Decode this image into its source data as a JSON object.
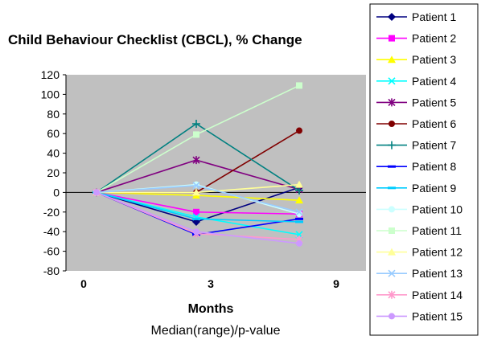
{
  "chart_data": {
    "type": "line",
    "title": "Child Behaviour Checklist (CBCL), % Change",
    "xlabel": "Months",
    "subtitle": "Median(range)/p-value",
    "categories": [
      "0",
      "3",
      "9"
    ],
    "ylim": [
      -80,
      120
    ],
    "yticks": [
      "120",
      "100",
      "80",
      "60",
      "40",
      "20",
      "0",
      "-20",
      "-40",
      "-60",
      "-80"
    ],
    "plot_background": "#c0c0c0",
    "grid": false,
    "legend_position": "right",
    "series": [
      {
        "name": "Patient 1",
        "values": [
          0,
          -30,
          5
        ],
        "color": "#000080",
        "marker": "diamond"
      },
      {
        "name": "Patient 2",
        "values": [
          0,
          -20,
          -22
        ],
        "color": "#ff00ff",
        "marker": "square"
      },
      {
        "name": "Patient 3",
        "values": [
          0,
          -3,
          -8
        ],
        "color": "#ffff00",
        "marker": "triangle"
      },
      {
        "name": "Patient 4",
        "values": [
          0,
          -25,
          -43
        ],
        "color": "#00ffff",
        "marker": "x"
      },
      {
        "name": "Patient 5",
        "values": [
          0,
          33,
          3
        ],
        "color": "#800080",
        "marker": "star"
      },
      {
        "name": "Patient 6",
        "values": [
          0,
          0,
          63
        ],
        "color": "#800000",
        "marker": "circle"
      },
      {
        "name": "Patient 7",
        "values": [
          0,
          70,
          2
        ],
        "color": "#008080",
        "marker": "plus"
      },
      {
        "name": "Patient 8",
        "values": [
          0,
          -43,
          -27
        ],
        "color": "#0000ff",
        "marker": "dash"
      },
      {
        "name": "Patient 9",
        "values": [
          0,
          -27,
          -30
        ],
        "color": "#00ccff",
        "marker": "dash"
      },
      {
        "name": "Patient 10",
        "values": [
          0,
          8,
          -22
        ],
        "color": "#ccffff",
        "marker": "circle"
      },
      {
        "name": "Patient 11",
        "values": [
          0,
          59,
          109
        ],
        "color": "#ccffcc",
        "marker": "square"
      },
      {
        "name": "Patient 12",
        "values": [
          0,
          0,
          8
        ],
        "color": "#ffff99",
        "marker": "triangle"
      },
      {
        "name": "Patient 13",
        "values": [
          0,
          7,
          -20
        ],
        "color": "#99ccff",
        "marker": "x"
      },
      {
        "name": "Patient 14",
        "values": [
          0,
          -42,
          -48
        ],
        "color": "#ff99cc",
        "marker": "star"
      },
      {
        "name": "Patient 15",
        "values": [
          0,
          -40,
          -52
        ],
        "color": "#cc99ff",
        "marker": "circle"
      }
    ]
  }
}
